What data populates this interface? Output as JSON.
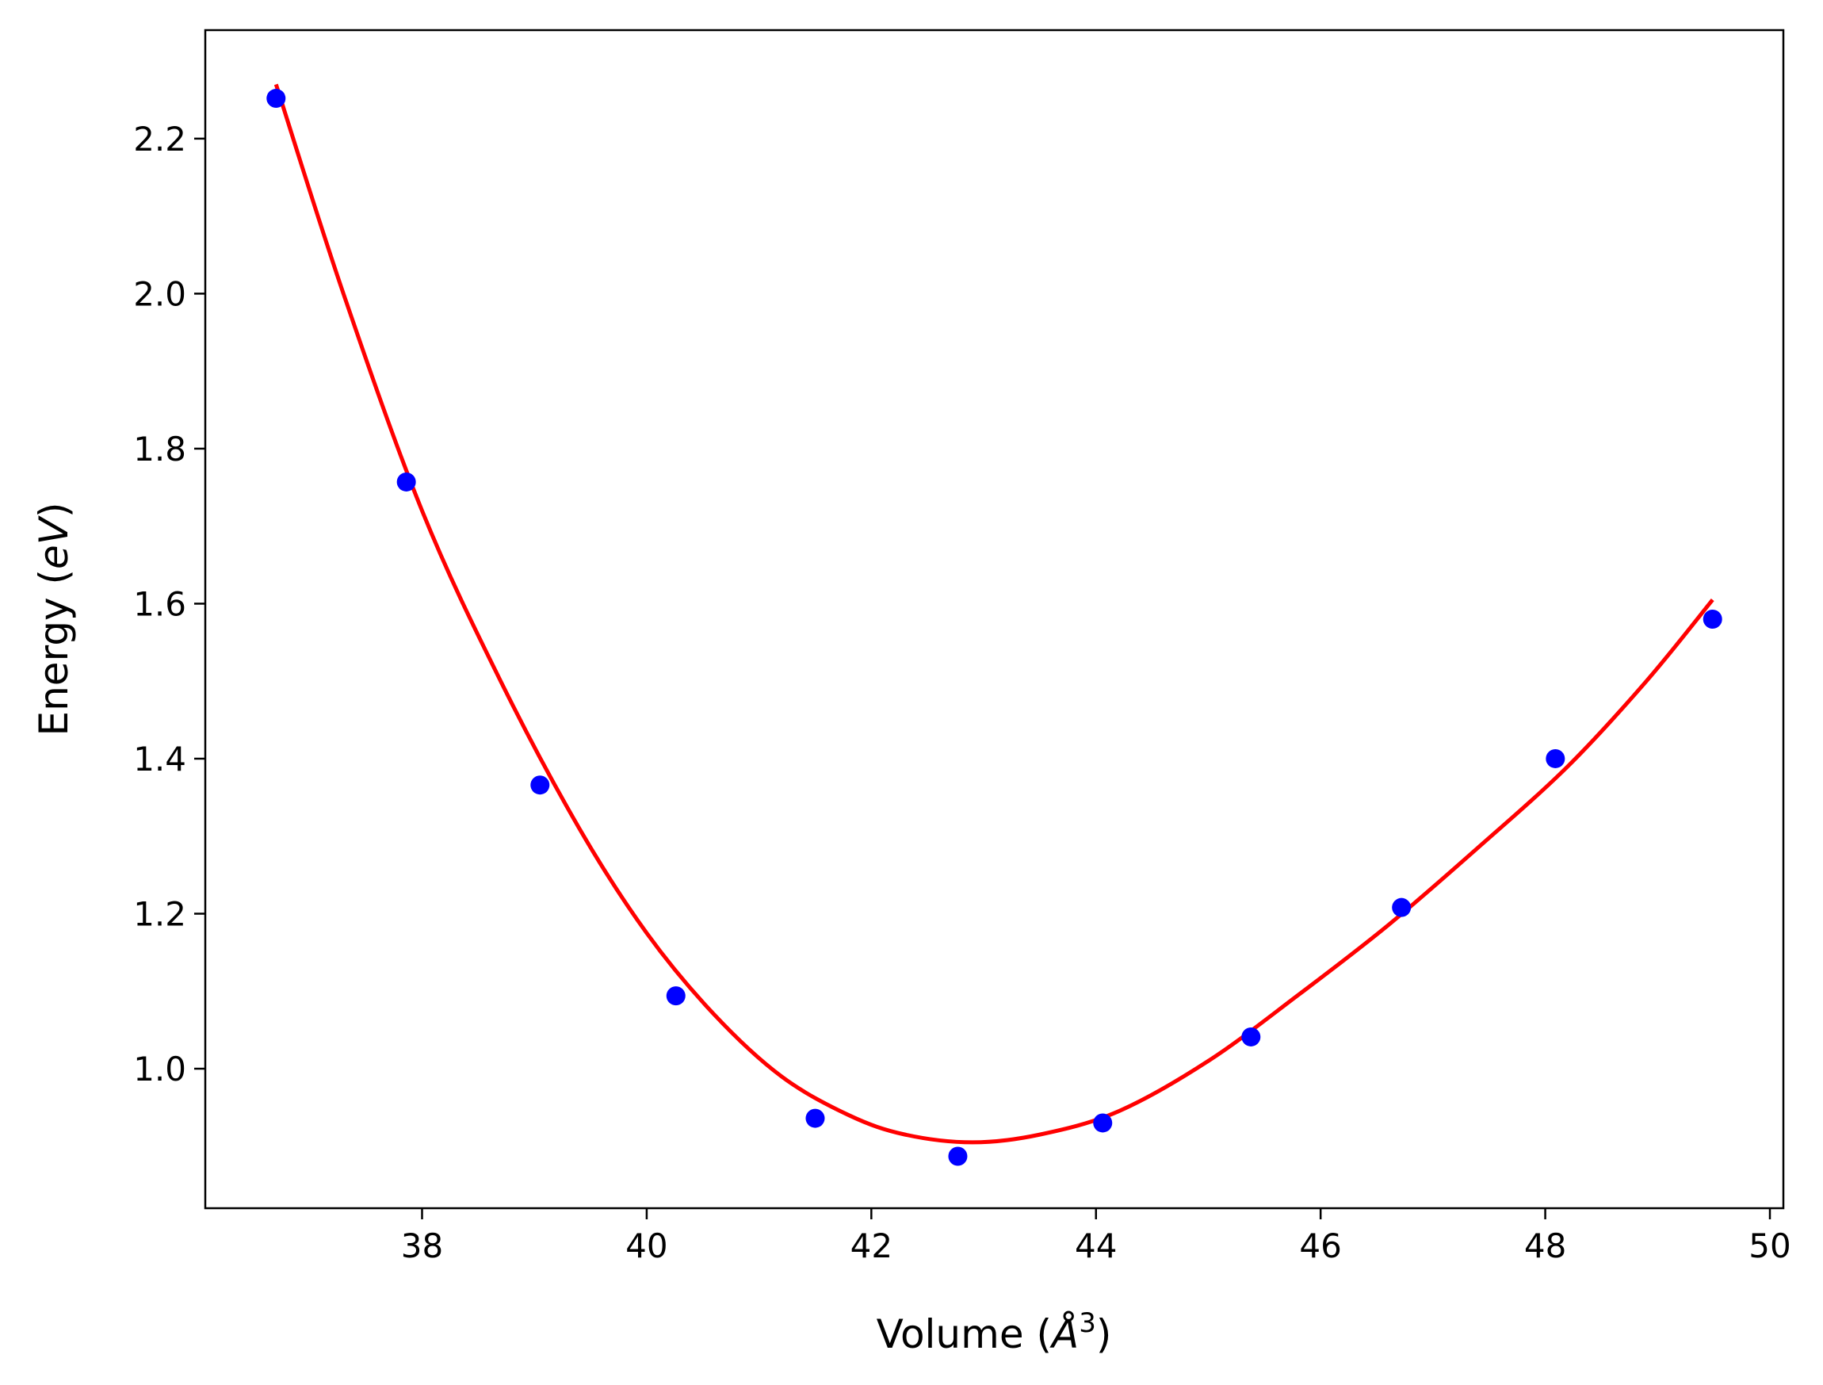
{
  "chart_data": {
    "type": "scatter",
    "title": "",
    "xlabel": "Volume (Å³)",
    "ylabel": "Energy (eV)",
    "xlabel_parts": {
      "pre": "Volume (",
      "symbol": "Å",
      "sup": "3",
      "post": ")"
    },
    "ylabel_parts": {
      "pre": "Energy (",
      "italic": "eV",
      "post": ")"
    },
    "xlim": [
      36.07,
      50.12
    ],
    "ylim": [
      0.82,
      2.34
    ],
    "xticks": [
      38,
      40,
      42,
      44,
      46,
      48,
      50
    ],
    "yticks": [
      1.0,
      1.2,
      1.4,
      1.6,
      1.8,
      2.0,
      2.2
    ],
    "xtick_labels": [
      "38",
      "40",
      "42",
      "44",
      "46",
      "48",
      "50"
    ],
    "ytick_labels": [
      "1.0",
      "1.2",
      "1.4",
      "1.6",
      "1.8",
      "2.0",
      "2.2"
    ],
    "grid": false,
    "legend": "none",
    "series": [
      {
        "kind": "points",
        "color": "#0000ff",
        "x": [
          36.7,
          37.86,
          39.05,
          40.26,
          41.5,
          42.77,
          44.06,
          45.38,
          46.72,
          48.09,
          49.49
        ],
        "y": [
          2.252,
          1.757,
          1.366,
          1.094,
          0.936,
          0.887,
          0.93,
          1.041,
          1.208,
          1.4,
          1.58
        ]
      },
      {
        "kind": "fit-line",
        "color": "#ff0000",
        "x": [
          36.7,
          37.3,
          38.0,
          38.7,
          39.4,
          40.0,
          40.6,
          41.2,
          41.8,
          42.3,
          42.9,
          43.5,
          44.2,
          45.0,
          45.8,
          46.6,
          47.4,
          48.2,
          48.9,
          49.49
        ],
        "y": [
          2.27,
          2.0,
          1.72,
          1.5,
          1.31,
          1.175,
          1.07,
          0.99,
          0.94,
          0.915,
          0.905,
          0.915,
          0.945,
          1.01,
          1.095,
          1.185,
          1.285,
          1.39,
          1.5,
          1.605
        ]
      }
    ]
  }
}
